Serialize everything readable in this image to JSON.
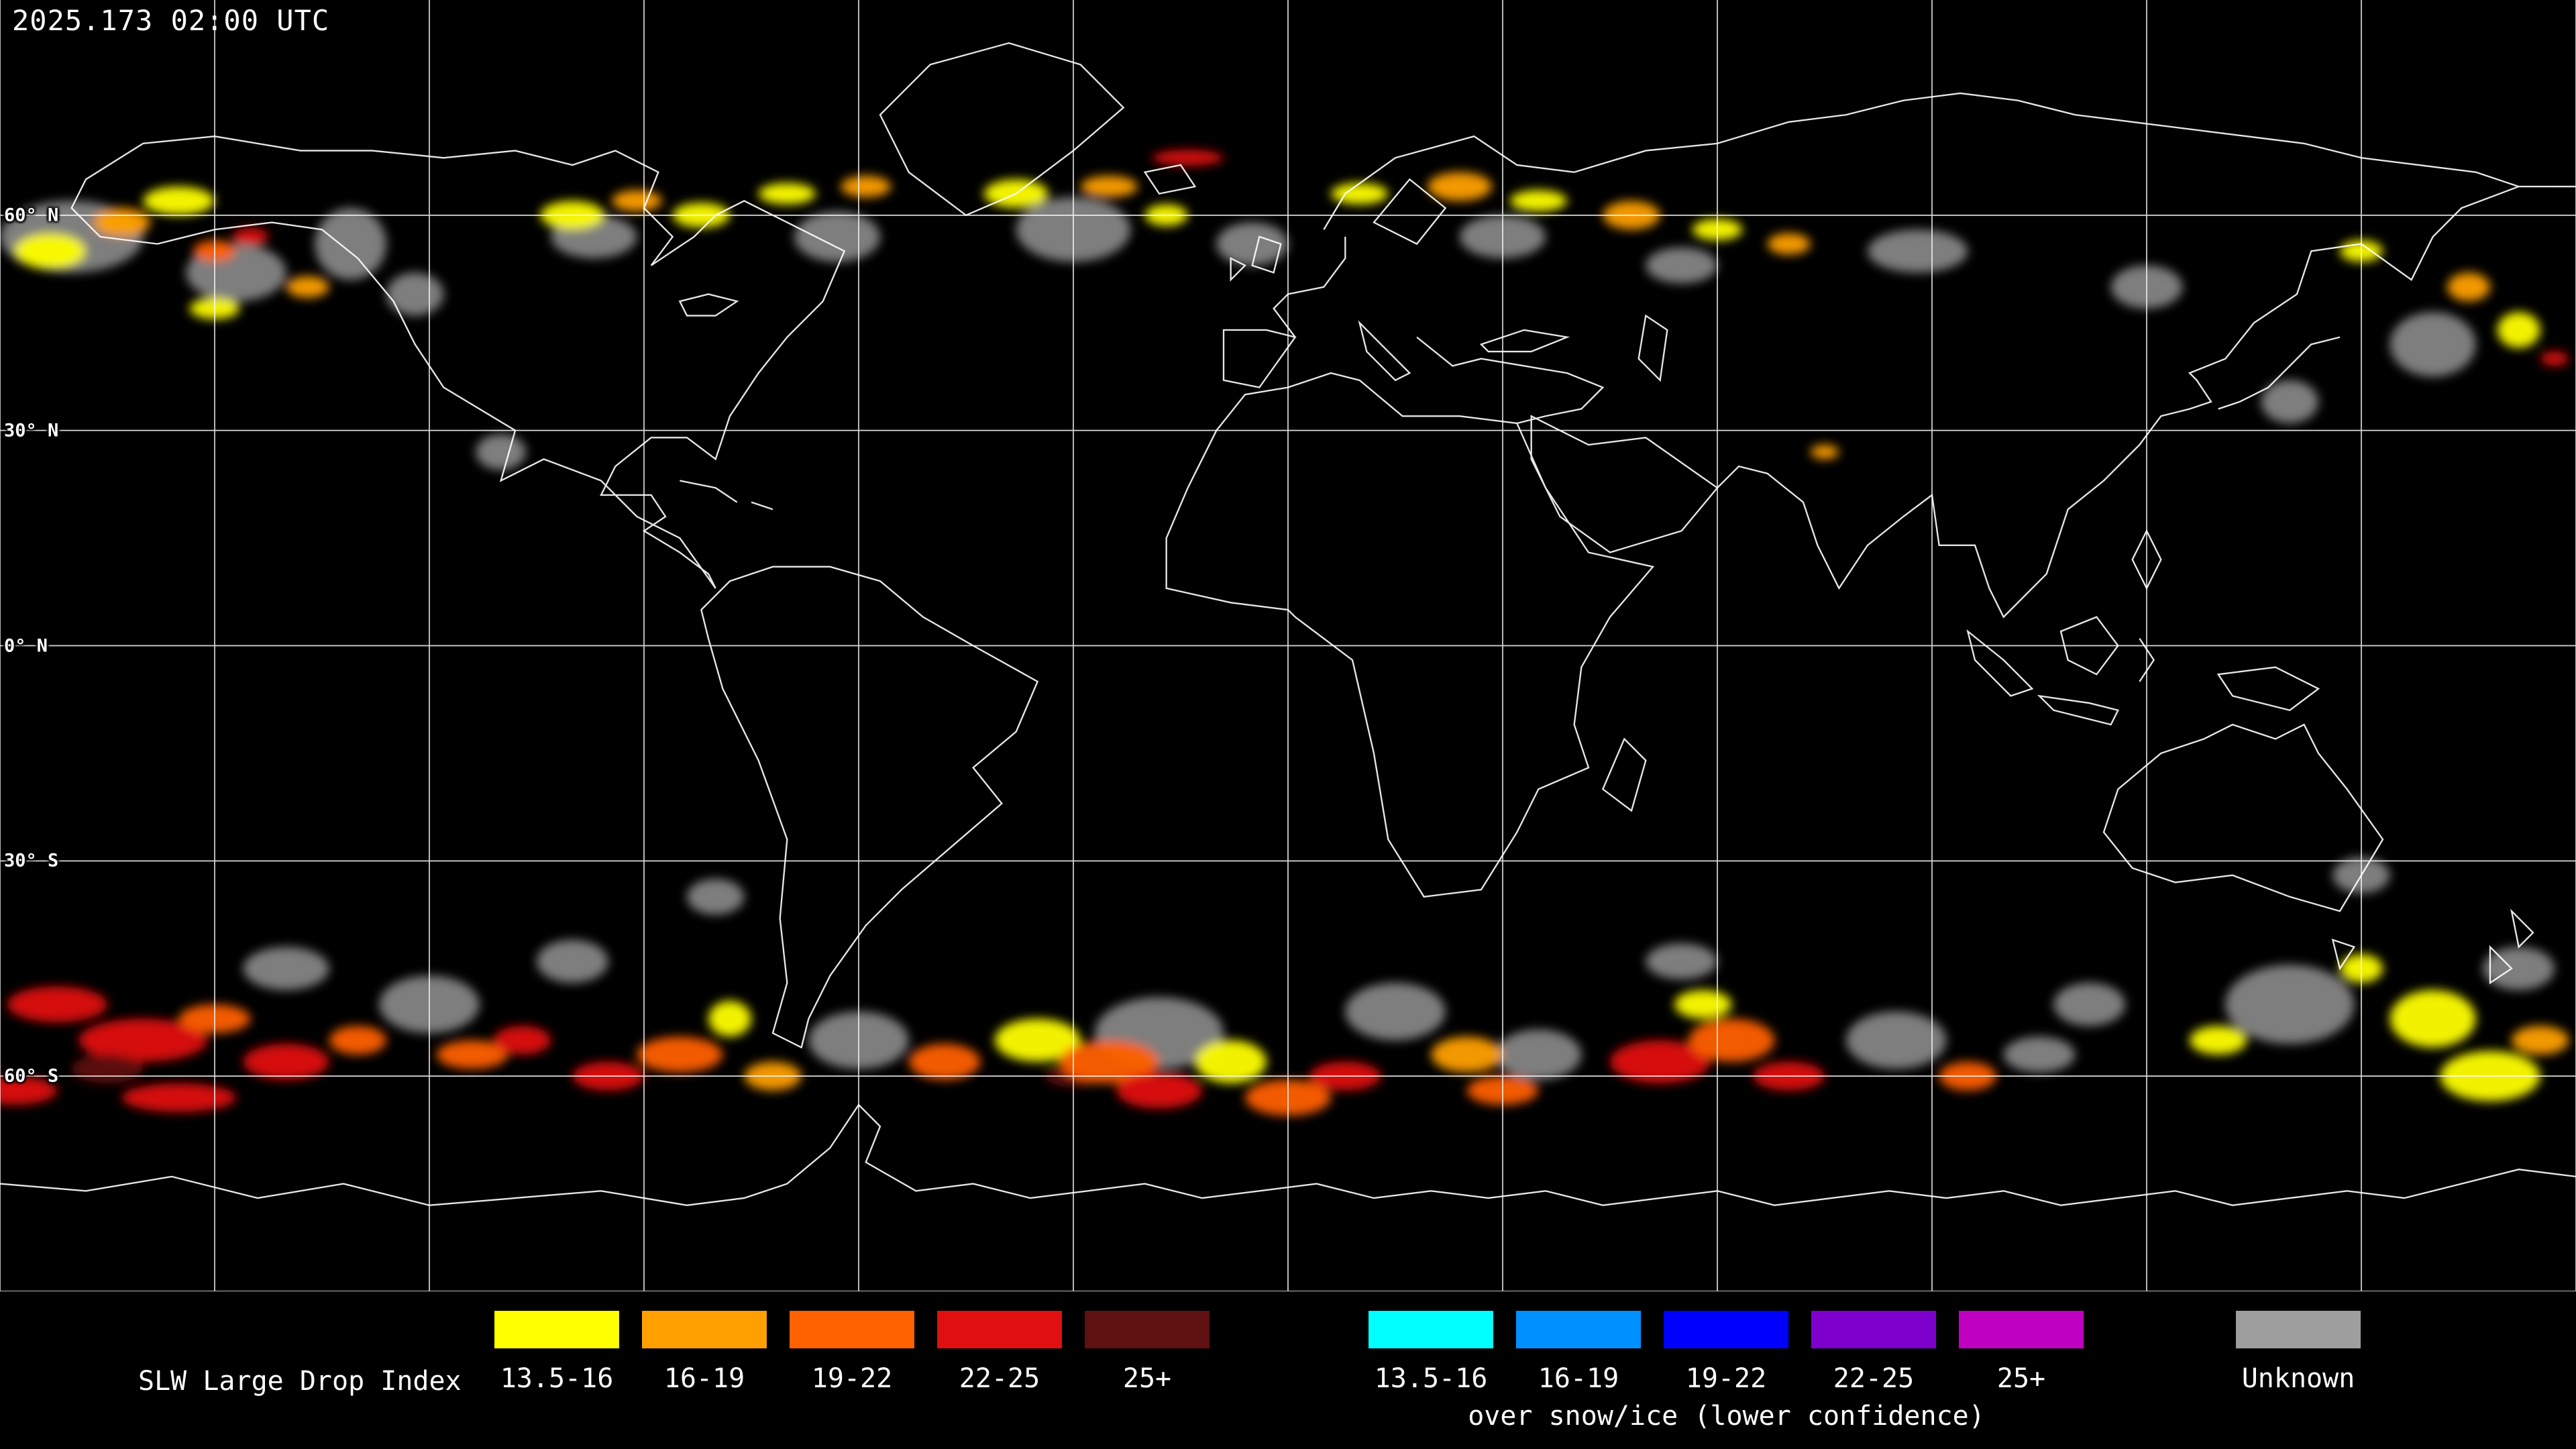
{
  "header": {
    "timestamp": "2025.173 02:00 UTC"
  },
  "map": {
    "lat_labels": [
      {
        "label": "60° N",
        "lat": 60
      },
      {
        "label": "30° N",
        "lat": 30
      },
      {
        "label": "0° N",
        "lat": 0
      },
      {
        "label": "30° S",
        "lat": -30
      },
      {
        "label": "60° S",
        "lat": -60
      }
    ],
    "grid": {
      "lon_step": 30,
      "lat_step": 30
    },
    "palette": {
      "y": "#ffff00",
      "o1": "#ffa000",
      "o2": "#ff6000",
      "r": "#e01010",
      "m": "#601111",
      "g": "#9e9e9e"
    },
    "regions": [
      [
        -170,
        57,
        20,
        10,
        "g"
      ],
      [
        -147,
        52,
        14,
        8,
        "g"
      ],
      [
        -131,
        56,
        10,
        10,
        "g"
      ],
      [
        -122,
        49,
        8,
        6,
        "g"
      ],
      [
        -97,
        57,
        12,
        6,
        "g"
      ],
      [
        -63,
        57,
        12,
        7,
        "g"
      ],
      [
        -30,
        58,
        16,
        9,
        "g"
      ],
      [
        -5,
        56,
        10,
        6,
        "g"
      ],
      [
        30,
        57,
        12,
        6,
        "g"
      ],
      [
        55,
        53,
        10,
        5,
        "g"
      ],
      [
        88,
        55,
        14,
        6,
        "g"
      ],
      [
        120,
        50,
        10,
        6,
        "g"
      ],
      [
        160,
        42,
        12,
        9,
        "g"
      ],
      [
        140,
        34,
        8,
        6,
        "g"
      ],
      [
        -110,
        27,
        7,
        5,
        "g"
      ],
      [
        -120,
        -50,
        14,
        8,
        "g"
      ],
      [
        -140,
        -45,
        12,
        6,
        "g"
      ],
      [
        -100,
        -44,
        10,
        6,
        "g"
      ],
      [
        -60,
        -55,
        14,
        8,
        "g"
      ],
      [
        -18,
        -54,
        18,
        10,
        "g"
      ],
      [
        15,
        -51,
        14,
        8,
        "g"
      ],
      [
        35,
        -57,
        12,
        7,
        "g"
      ],
      [
        55,
        -44,
        10,
        5,
        "g"
      ],
      [
        85,
        -55,
        14,
        8,
        "g"
      ],
      [
        105,
        -57,
        10,
        5,
        "g"
      ],
      [
        140,
        -50,
        18,
        11,
        "g"
      ],
      [
        172,
        -45,
        10,
        6,
        "g"
      ],
      [
        -80,
        -35,
        8,
        5,
        "g"
      ],
      [
        150,
        -32,
        8,
        5,
        "g"
      ],
      [
        112,
        -50,
        10,
        6,
        "g"
      ],
      [
        -173,
        55,
        10,
        5,
        "y"
      ],
      [
        -163,
        59,
        8,
        4,
        "o1"
      ],
      [
        -155,
        62,
        10,
        4,
        "y"
      ],
      [
        -150,
        55,
        6,
        3,
        "o2"
      ],
      [
        -145,
        57,
        5,
        2.5,
        "r"
      ],
      [
        -150,
        47,
        7,
        3,
        "y"
      ],
      [
        -137,
        50,
        6,
        3,
        "o1"
      ],
      [
        -100,
        60,
        9,
        4,
        "y"
      ],
      [
        -91,
        62,
        7,
        3,
        "o1"
      ],
      [
        -82,
        60,
        8,
        3.5,
        "y"
      ],
      [
        -70,
        63,
        8,
        3,
        "y"
      ],
      [
        -59,
        64,
        7,
        3,
        "o1"
      ],
      [
        -38,
        63,
        9,
        4,
        "y"
      ],
      [
        -25,
        64,
        8,
        3,
        "o1"
      ],
      [
        -14,
        68,
        10,
        2.2,
        "r"
      ],
      [
        -17,
        60,
        6,
        3,
        "y"
      ],
      [
        10,
        63,
        8,
        3,
        "y"
      ],
      [
        24,
        64,
        9,
        4,
        "o1"
      ],
      [
        35,
        62,
        8,
        3,
        "y"
      ],
      [
        48,
        60,
        8,
        4,
        "o1"
      ],
      [
        60,
        58,
        7,
        3,
        "y"
      ],
      [
        70,
        56,
        6,
        3,
        "o1"
      ],
      [
        150,
        55,
        6,
        3,
        "y"
      ],
      [
        165,
        50,
        6,
        4,
        "o1"
      ],
      [
        172,
        44,
        6,
        5,
        "y"
      ],
      [
        177,
        40,
        4,
        2,
        "r"
      ],
      [
        75,
        27,
        4,
        2,
        "o1"
      ],
      [
        -172,
        -50,
        14,
        5,
        "r"
      ],
      [
        -160,
        -55,
        18,
        6,
        "r"
      ],
      [
        -150,
        -52,
        10,
        4,
        "o2"
      ],
      [
        -140,
        -58,
        12,
        5,
        "r"
      ],
      [
        -165,
        -59,
        10,
        4,
        "m"
      ],
      [
        -178,
        -62,
        12,
        4,
        "r"
      ],
      [
        -155,
        -63,
        16,
        4,
        "r"
      ],
      [
        -130,
        -55,
        8,
        4,
        "o2"
      ],
      [
        -114,
        -57,
        10,
        4,
        "o2"
      ],
      [
        -107,
        -55,
        8,
        4,
        "r"
      ],
      [
        -95,
        -60,
        10,
        4,
        "r"
      ],
      [
        -85,
        -57,
        12,
        5,
        "o2"
      ],
      [
        -78,
        -52,
        6,
        5,
        "y"
      ],
      [
        -72,
        -60,
        8,
        4,
        "o1"
      ],
      [
        -48,
        -58,
        10,
        5,
        "o2"
      ],
      [
        -35,
        -55,
        12,
        6,
        "y"
      ],
      [
        -30,
        -60,
        8,
        3,
        "m"
      ],
      [
        -25,
        -58,
        14,
        6,
        "o2"
      ],
      [
        -18,
        -62,
        12,
        5,
        "r"
      ],
      [
        -8,
        -58,
        10,
        6,
        "y"
      ],
      [
        0,
        -63,
        12,
        5,
        "o2"
      ],
      [
        8,
        -60,
        10,
        4,
        "r"
      ],
      [
        25,
        -57,
        10,
        5,
        "o1"
      ],
      [
        30,
        -62,
        10,
        4,
        "o2"
      ],
      [
        52,
        -58,
        14,
        6,
        "r"
      ],
      [
        62,
        -55,
        12,
        6,
        "o2"
      ],
      [
        58,
        -50,
        8,
        4,
        "y"
      ],
      [
        70,
        -60,
        10,
        4,
        "r"
      ],
      [
        95,
        -60,
        8,
        4,
        "o2"
      ],
      [
        130,
        -55,
        8,
        4,
        "y"
      ],
      [
        150,
        -45,
        6,
        4,
        "y"
      ],
      [
        160,
        -52,
        12,
        8,
        "y"
      ],
      [
        168,
        -60,
        14,
        7,
        "y"
      ],
      [
        175,
        -55,
        8,
        4,
        "o1"
      ]
    ]
  },
  "legend": {
    "title": "SLW Large Drop Index",
    "main": {
      "entries": [
        {
          "label": "13.5-16",
          "color": "#ffff00"
        },
        {
          "label": "16-19",
          "color": "#ffa000"
        },
        {
          "label": "19-22",
          "color": "#ff6000"
        },
        {
          "label": "22-25",
          "color": "#e01010"
        },
        {
          "label": "25+",
          "color": "#601111"
        }
      ]
    },
    "snow": {
      "caption": "over snow/ice (lower confidence)",
      "entries": [
        {
          "label": "13.5-16",
          "color": "#00ffff"
        },
        {
          "label": "16-19",
          "color": "#0090ff"
        },
        {
          "label": "19-22",
          "color": "#0000ff"
        },
        {
          "label": "22-25",
          "color": "#7d00cc"
        },
        {
          "label": "25+",
          "color": "#c000c0"
        }
      ]
    },
    "unknown": {
      "label": "Unknown",
      "color": "#9e9e9e"
    }
  }
}
